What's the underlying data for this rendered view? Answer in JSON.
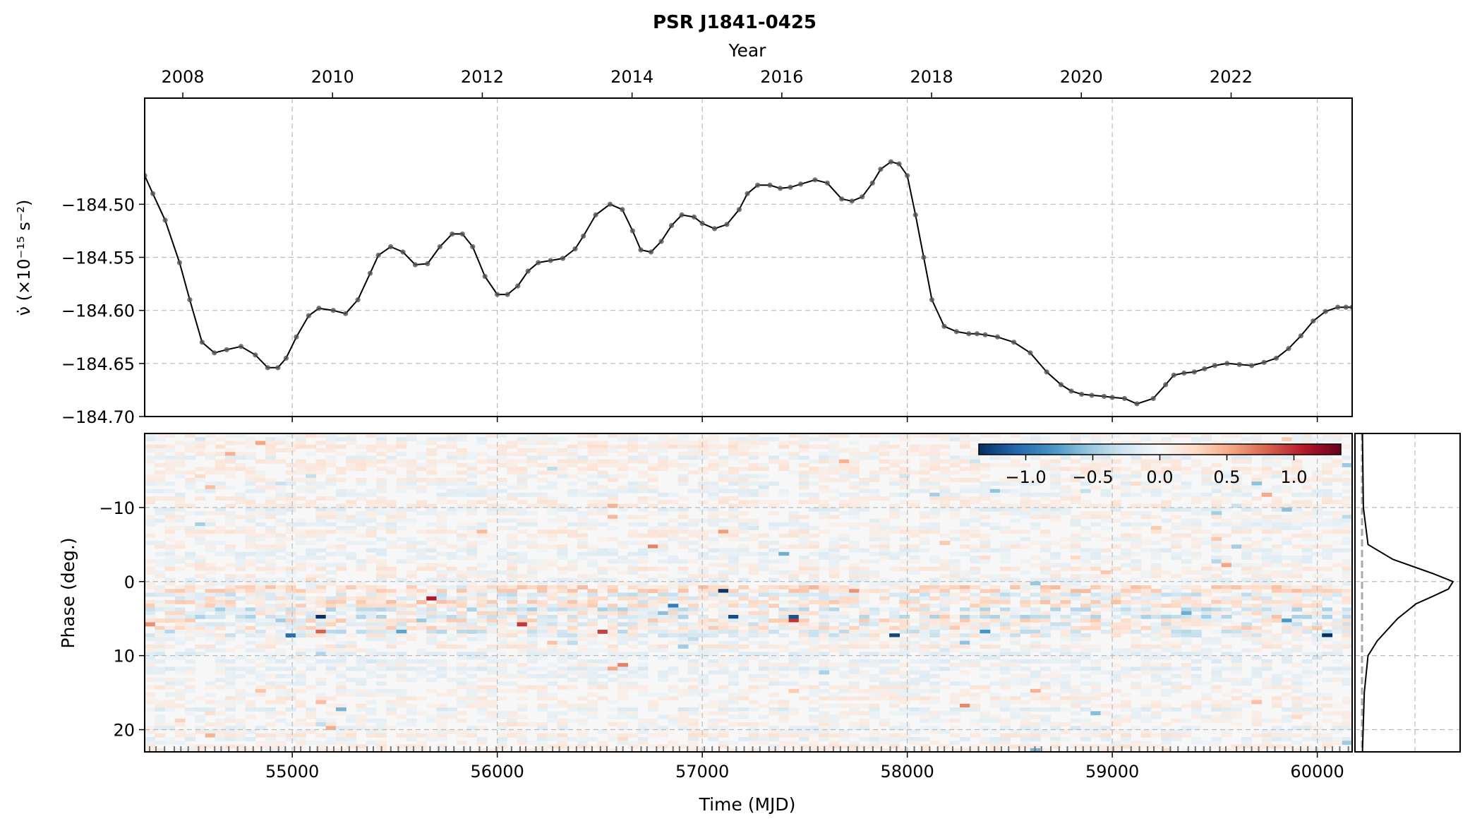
{
  "chart_data": [
    {
      "type": "line",
      "title": "PSR J1841-0425",
      "top_axis_label": "Year",
      "top_axis_ticks": [
        "2008",
        "2010",
        "2012",
        "2014",
        "2016",
        "2018",
        "2020",
        "2022"
      ],
      "ylabel": "ν̇ (×10⁻¹⁵ s⁻²)",
      "xlim": [
        54280,
        60170
      ],
      "ylim": [
        -184.7,
        -184.4
      ],
      "yticks": [
        "−184.50",
        "−184.55",
        "−184.60",
        "−184.65",
        "−184.70"
      ],
      "grid": true,
      "series": [
        {
          "color": "#000000",
          "marker_color": "#555555",
          "x": [
            54280,
            54320,
            54380,
            54450,
            54500,
            54560,
            54620,
            54680,
            54750,
            54820,
            54880,
            54930,
            54970,
            55020,
            55080,
            55130,
            55200,
            55260,
            55320,
            55380,
            55420,
            55480,
            55540,
            55600,
            55660,
            55720,
            55780,
            55830,
            55880,
            55940,
            56000,
            56050,
            56100,
            56150,
            56200,
            56260,
            56320,
            56380,
            56420,
            56480,
            56550,
            56610,
            56660,
            56700,
            56750,
            56800,
            56850,
            56900,
            56960,
            57000,
            57060,
            57120,
            57180,
            57220,
            57270,
            57330,
            57380,
            57430,
            57480,
            57550,
            57610,
            57680,
            57730,
            57780,
            57830,
            57870,
            57920,
            57960,
            58000,
            58040,
            58080,
            58120,
            58180,
            58240,
            58300,
            58340,
            58380,
            58440,
            58520,
            58600,
            58680,
            58750,
            58800,
            58850,
            58900,
            58960,
            59000,
            59060,
            59120,
            59200,
            59260,
            59300,
            59350,
            59400,
            59450,
            59500,
            59560,
            59620,
            59680,
            59740,
            59800,
            59860,
            59920,
            59980,
            60040,
            60100,
            60140,
            60170
          ],
          "y": [
            -184.473,
            -184.49,
            -184.515,
            -184.555,
            -184.59,
            -184.63,
            -184.64,
            -184.637,
            -184.634,
            -184.642,
            -184.654,
            -184.654,
            -184.645,
            -184.625,
            -184.605,
            -184.598,
            -184.6,
            -184.603,
            -184.59,
            -184.565,
            -184.548,
            -184.54,
            -184.545,
            -184.557,
            -184.556,
            -184.54,
            -184.528,
            -184.528,
            -184.54,
            -184.568,
            -184.585,
            -184.585,
            -184.577,
            -184.563,
            -184.555,
            -184.553,
            -184.551,
            -184.542,
            -184.53,
            -184.51,
            -184.5,
            -184.505,
            -184.525,
            -184.543,
            -184.545,
            -184.535,
            -184.52,
            -184.51,
            -184.512,
            -184.518,
            -184.523,
            -184.519,
            -184.505,
            -184.49,
            -184.482,
            -184.482,
            -184.485,
            -184.484,
            -184.481,
            -184.477,
            -184.48,
            -184.495,
            -184.497,
            -184.493,
            -184.48,
            -184.467,
            -184.46,
            -184.462,
            -184.473,
            -184.51,
            -184.55,
            -184.59,
            -184.615,
            -184.62,
            -184.622,
            -184.622,
            -184.623,
            -184.625,
            -184.63,
            -184.64,
            -184.658,
            -184.67,
            -184.676,
            -184.679,
            -184.68,
            -184.681,
            -184.682,
            -184.683,
            -184.688,
            -184.683,
            -184.67,
            -184.661,
            -184.659,
            -184.658,
            -184.655,
            -184.652,
            -184.65,
            -184.651,
            -184.652,
            -184.649,
            -184.645,
            -184.636,
            -184.624,
            -184.61,
            -184.601,
            -184.597,
            -184.597,
            -184.597
          ]
        }
      ]
    },
    {
      "type": "heatmap",
      "xlabel": "Time (MJD)",
      "ylabel": "Phase (deg.)",
      "xlim": [
        54280,
        60170
      ],
      "ylim": [
        23,
        -20
      ],
      "xticks": [
        "55000",
        "56000",
        "57000",
        "58000",
        "59000",
        "60000"
      ],
      "yticks": [
        "−10",
        "0",
        "10",
        "20"
      ],
      "colormap": "RdBu_r",
      "colorbar": {
        "ticks": [
          "−1.0",
          "−0.5",
          "0.0",
          "0.5",
          "1.0"
        ],
        "range": [
          -1.35,
          1.35
        ],
        "colors": [
          "#053061",
          "#2166ac",
          "#4393c3",
          "#92c5de",
          "#d1e5f0",
          "#f7f7f7",
          "#fddbc7",
          "#f4a582",
          "#d6604d",
          "#b2182b",
          "#67001f"
        ]
      },
      "grid": true
    },
    {
      "type": "line",
      "panel": "profile",
      "description_of_series": "mean pulse profile vs phase",
      "phase": [
        -20,
        -10,
        -5,
        -3,
        -1,
        0,
        1,
        2,
        3,
        5,
        8,
        10,
        15,
        23
      ],
      "intensity": [
        0.02,
        0.03,
        0.08,
        0.35,
        0.8,
        1.0,
        0.95,
        0.78,
        0.6,
        0.4,
        0.18,
        0.08,
        0.04,
        0.02
      ]
    }
  ]
}
